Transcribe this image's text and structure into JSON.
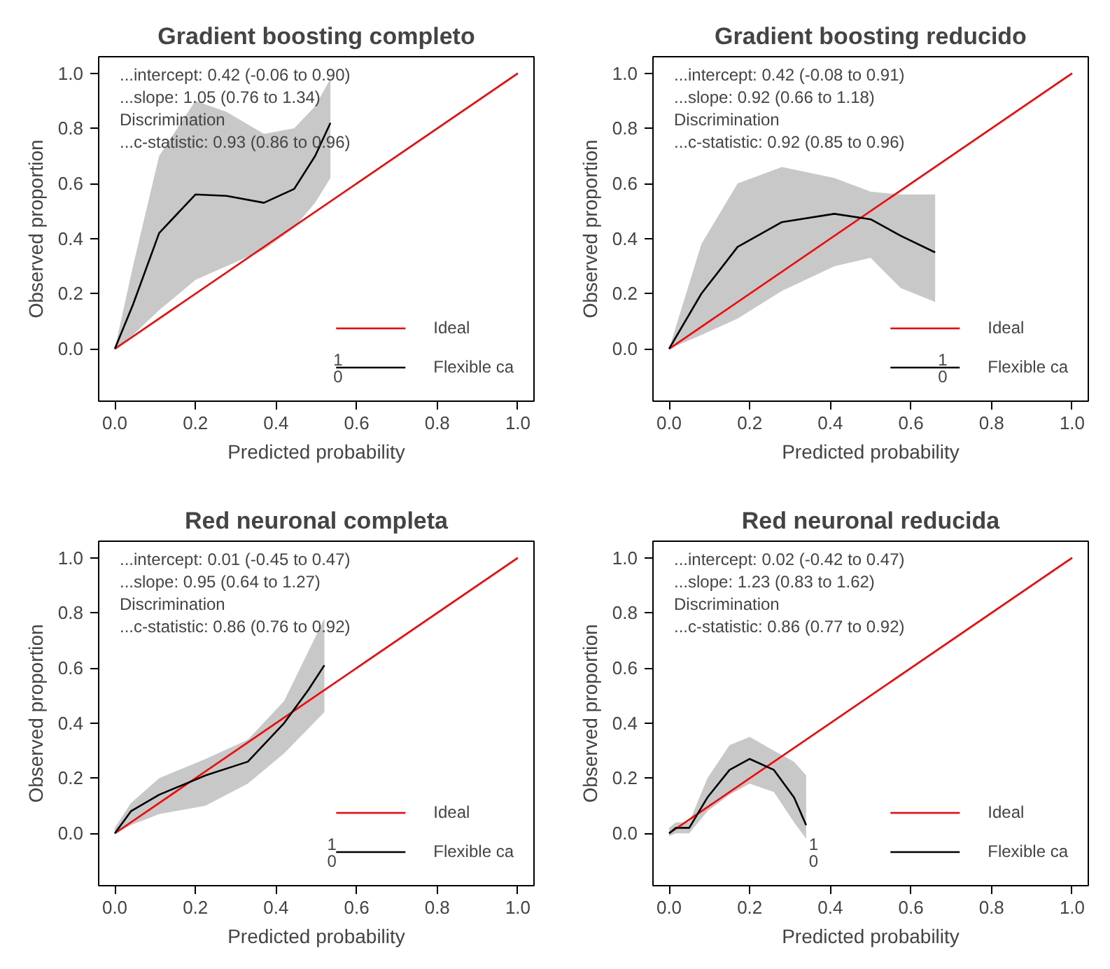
{
  "chart_data": [
    {
      "type": "line",
      "title": "Gradient boosting completo",
      "xlabel": "Predicted probability",
      "ylabel": "Observed proportion",
      "xlim": [
        -0.04,
        1.04
      ],
      "ylim": [
        -0.19,
        1.06
      ],
      "xticks": [
        {
          "value": 0,
          "label": "0.0"
        },
        {
          "value": 0.2,
          "label": "0.2"
        },
        {
          "value": 0.4,
          "label": "0.4"
        },
        {
          "value": 0.6,
          "label": "0.6"
        },
        {
          "value": 0.8,
          "label": "0.8"
        },
        {
          "value": 1,
          "label": "1.0"
        }
      ],
      "yticks": [
        {
          "value": 0,
          "label": "0.0"
        },
        {
          "value": 0.2,
          "label": "0.2"
        },
        {
          "value": 0.4,
          "label": "0.4"
        },
        {
          "value": 0.6,
          "label": "0.6"
        },
        {
          "value": 0.8,
          "label": "0.8"
        },
        {
          "value": 1,
          "label": "1.0"
        }
      ],
      "grid": false,
      "legend": "bottom right",
      "marker": "none",
      "series": [
        {
          "name": "Ideal",
          "color": "#ff0000",
          "x": [
            0,
            1
          ],
          "values": [
            0,
            1
          ]
        },
        {
          "name": "Flexible ca",
          "color": "#000000",
          "x": [
            0,
            0.045,
            0.11,
            0.2,
            0.277,
            0.37,
            0.445,
            0.497,
            0.535
          ],
          "values": [
            0,
            0.16,
            0.42,
            0.56,
            0.555,
            0.53,
            0.58,
            0.7,
            0.82
          ],
          "lower": [
            0,
            0.05,
            0.14,
            0.25,
            0.3,
            0.36,
            0.44,
            0.53,
            0.62
          ],
          "upper": [
            0,
            0.3,
            0.7,
            0.9,
            0.86,
            0.78,
            0.8,
            0.88,
            0.98
          ]
        }
      ],
      "annotations": [
        "...intercept: 0.42 (-0.06 to 0.90)",
        "...slope: 1.05 (0.76 to 1.34)",
        "Discrimination",
        "...c-statistic: 0.93 (0.86 to 0.96)",
        "1",
        "0"
      ]
    },
    {
      "type": "line",
      "title": "Gradient boosting reducido",
      "xlabel": "Predicted probability",
      "ylabel": "Observed proportion",
      "xlim": [
        -0.04,
        1.04
      ],
      "ylim": [
        -0.19,
        1.06
      ],
      "xticks": [
        {
          "value": 0,
          "label": "0.0"
        },
        {
          "value": 0.2,
          "label": "0.2"
        },
        {
          "value": 0.4,
          "label": "0.4"
        },
        {
          "value": 0.6,
          "label": "0.6"
        },
        {
          "value": 0.8,
          "label": "0.8"
        },
        {
          "value": 1,
          "label": "1.0"
        }
      ],
      "yticks": [
        {
          "value": 0,
          "label": "0.0"
        },
        {
          "value": 0.2,
          "label": "0.2"
        },
        {
          "value": 0.4,
          "label": "0.4"
        },
        {
          "value": 0.6,
          "label": "0.6"
        },
        {
          "value": 0.8,
          "label": "0.8"
        },
        {
          "value": 1,
          "label": "1.0"
        }
      ],
      "grid": false,
      "legend": "bottom right",
      "marker": "none",
      "series": [
        {
          "name": "Ideal",
          "color": "#ff0000",
          "x": [
            0,
            1
          ],
          "values": [
            0,
            1
          ]
        },
        {
          "name": "Flexible ca",
          "color": "#000000",
          "x": [
            0,
            0.08,
            0.17,
            0.28,
            0.41,
            0.5,
            0.575,
            0.66
          ],
          "values": [
            0,
            0.2,
            0.37,
            0.46,
            0.49,
            0.47,
            0.41,
            0.35
          ],
          "lower": [
            0,
            0.05,
            0.11,
            0.21,
            0.3,
            0.33,
            0.22,
            0.17
          ],
          "upper": [
            0,
            0.38,
            0.6,
            0.66,
            0.62,
            0.57,
            0.56,
            0.56
          ]
        }
      ],
      "annotations": [
        "...intercept: 0.42 (-0.08 to 0.91)",
        "...slope: 0.92 (0.66 to 1.18)",
        "Discrimination",
        "...c-statistic: 0.92 (0.85 to 0.96)",
        "1",
        "0"
      ]
    },
    {
      "type": "line",
      "title": "Red neuronal completa",
      "xlabel": "Predicted probability",
      "ylabel": "Observed proportion",
      "xlim": [
        -0.04,
        1.04
      ],
      "ylim": [
        -0.19,
        1.06
      ],
      "xticks": [
        {
          "value": 0,
          "label": "0.0"
        },
        {
          "value": 0.2,
          "label": "0.2"
        },
        {
          "value": 0.4,
          "label": "0.4"
        },
        {
          "value": 0.6,
          "label": "0.6"
        },
        {
          "value": 0.8,
          "label": "0.8"
        },
        {
          "value": 1,
          "label": "1.0"
        }
      ],
      "yticks": [
        {
          "value": 0,
          "label": "0.0"
        },
        {
          "value": 0.2,
          "label": "0.2"
        },
        {
          "value": 0.4,
          "label": "0.4"
        },
        {
          "value": 0.6,
          "label": "0.6"
        },
        {
          "value": 0.8,
          "label": "0.8"
        },
        {
          "value": 1,
          "label": "1.0"
        }
      ],
      "grid": false,
      "legend": "bottom right",
      "marker": "none",
      "series": [
        {
          "name": "Ideal",
          "color": "#ff0000",
          "x": [
            0,
            1
          ],
          "values": [
            0,
            1
          ]
        },
        {
          "name": "Flexible ca",
          "color": "#000000",
          "x": [
            0,
            0.04,
            0.11,
            0.225,
            0.33,
            0.42,
            0.48,
            0.52
          ],
          "values": [
            0,
            0.08,
            0.14,
            0.21,
            0.26,
            0.4,
            0.52,
            0.61
          ],
          "lower": [
            0,
            0.03,
            0.07,
            0.1,
            0.18,
            0.29,
            0.38,
            0.44
          ],
          "upper": [
            0.02,
            0.11,
            0.2,
            0.27,
            0.34,
            0.48,
            0.66,
            0.78
          ]
        }
      ],
      "annotations": [
        "...intercept: 0.01 (-0.45 to 0.47)",
        "...slope: 0.95 (0.64 to 1.27)",
        "Discrimination",
        "...c-statistic: 0.86 (0.76 to 0.92)",
        "1",
        "0"
      ]
    },
    {
      "type": "line",
      "title": "Red neuronal reducida",
      "xlabel": "Predicted probability",
      "ylabel": "Observed proportion",
      "xlim": [
        -0.04,
        1.04
      ],
      "ylim": [
        -0.19,
        1.06
      ],
      "xticks": [
        {
          "value": 0,
          "label": "0.0"
        },
        {
          "value": 0.2,
          "label": "0.2"
        },
        {
          "value": 0.4,
          "label": "0.4"
        },
        {
          "value": 0.6,
          "label": "0.6"
        },
        {
          "value": 0.8,
          "label": "0.8"
        },
        {
          "value": 1,
          "label": "1.0"
        }
      ],
      "yticks": [
        {
          "value": 0,
          "label": "0.0"
        },
        {
          "value": 0.2,
          "label": "0.2"
        },
        {
          "value": 0.4,
          "label": "0.4"
        },
        {
          "value": 0.6,
          "label": "0.6"
        },
        {
          "value": 0.8,
          "label": "0.8"
        },
        {
          "value": 1,
          "label": "1.0"
        }
      ],
      "grid": false,
      "legend": "bottom right",
      "marker": "none",
      "series": [
        {
          "name": "Ideal",
          "color": "#ff0000",
          "x": [
            0,
            1
          ],
          "values": [
            0,
            1
          ]
        },
        {
          "name": "Flexible ca",
          "color": "#000000",
          "x": [
            0,
            0.017,
            0.05,
            0.095,
            0.15,
            0.2,
            0.26,
            0.31,
            0.34
          ],
          "values": [
            0,
            0.02,
            0.02,
            0.13,
            0.23,
            0.27,
            0.23,
            0.13,
            0.03
          ],
          "lower": [
            -0.01,
            0,
            0,
            0.08,
            0.14,
            0.18,
            0.15,
            0.04,
            -0.02
          ],
          "upper": [
            0.02,
            0.04,
            0.04,
            0.2,
            0.32,
            0.35,
            0.3,
            0.26,
            0.21
          ]
        }
      ],
      "annotations": [
        "...intercept: 0.02 (-0.42 to 0.47)",
        "...slope: 1.23 (0.83 to 1.62)",
        "Discrimination",
        "...c-statistic: 0.86 (0.77 to 0.92)",
        "1",
        "0"
      ]
    }
  ]
}
